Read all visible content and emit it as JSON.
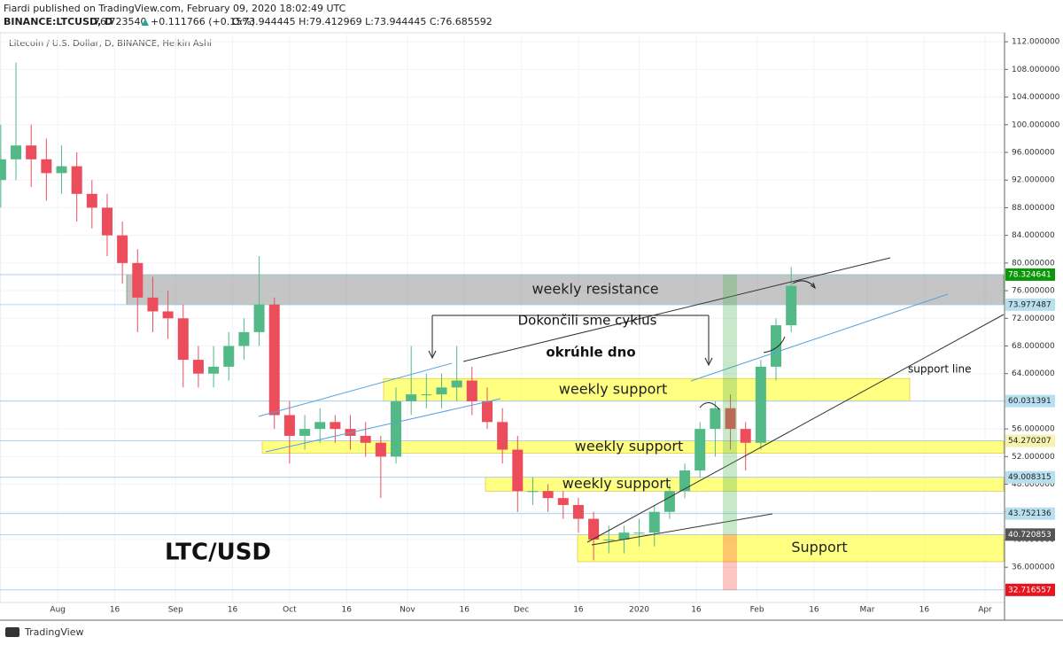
{
  "header": {
    "publisher": "Fiardi published on TradingView.com, February 09, 2020 18:02:49 UTC",
    "symbol": "BINANCE:LTCUSD, D",
    "price": "76.723540",
    "change": "+0.111766 (+0.15%)",
    "ohlc": "O:73.944445 H:79.412969 L:73.944445 C:76.685592"
  },
  "footer": "TradingView",
  "chart_data": {
    "type": "candlestick",
    "title": "Litecoin / U.S. Dollar, D, BINANCE, Heikin Ashi",
    "x": [
      -15,
      -11,
      -7,
      -3,
      1,
      5,
      9,
      13,
      17,
      21,
      25,
      29,
      33,
      37,
      41,
      45,
      49,
      53,
      57,
      61,
      65,
      69,
      73,
      77,
      81,
      85,
      89,
      93,
      97,
      101,
      105,
      109,
      113,
      117,
      121,
      125,
      129,
      133,
      137,
      141,
      145,
      149,
      153,
      157,
      161,
      165,
      169,
      173,
      177,
      181,
      185,
      189,
      193
    ],
    "open": [
      92,
      95,
      97,
      95,
      93,
      94,
      90,
      88,
      84,
      80,
      75,
      73,
      72,
      66,
      64,
      65,
      68,
      70,
      74,
      58,
      55,
      56,
      57,
      56,
      55,
      54,
      52,
      60,
      61,
      61,
      62,
      63,
      60,
      57,
      53,
      47,
      47,
      46,
      45,
      43,
      40,
      40,
      41,
      41,
      44,
      47,
      50,
      56,
      59,
      56,
      54,
      65,
      71
    ],
    "high": [
      100,
      109,
      100,
      98,
      97,
      96,
      92,
      90,
      86,
      82,
      78,
      76,
      74,
      68,
      68,
      70,
      72,
      81,
      75,
      60,
      58,
      59,
      58,
      58,
      57,
      55,
      62,
      68,
      64,
      64,
      68,
      65,
      62,
      59,
      55,
      49,
      48,
      47,
      46,
      44,
      42,
      42,
      43,
      45,
      48,
      51,
      57,
      60,
      61,
      57,
      66,
      72,
      79.4
    ],
    "low": [
      88,
      92,
      91,
      89,
      90,
      86,
      85,
      81,
      77,
      70,
      70,
      69,
      62,
      62,
      62,
      63,
      66,
      68,
      56,
      51,
      53,
      54,
      54,
      53,
      52,
      46,
      51,
      58,
      59,
      59,
      60,
      58,
      56,
      51,
      44,
      45,
      44,
      43,
      41,
      37,
      38,
      38,
      39,
      39,
      43,
      46,
      49,
      52,
      53,
      50,
      53,
      63,
      70
    ],
    "close": [
      95,
      97,
      95,
      93,
      94,
      90,
      88,
      84,
      80,
      75,
      73,
      72,
      66,
      64,
      65,
      68,
      70,
      74,
      58,
      55,
      56,
      57,
      56,
      55,
      54,
      52,
      60,
      61,
      61,
      62,
      63,
      60,
      57,
      53,
      47,
      47,
      46,
      45,
      43,
      40,
      40,
      41,
      41,
      44,
      47,
      50,
      56,
      59,
      56,
      54,
      65,
      71,
      76.7
    ],
    "up_color": "#53b987",
    "down_color": "#eb4d5c",
    "xlim": [
      -15.2,
      248.9
    ],
    "xticks": [
      {
        "value": 0,
        "label": "Aug"
      },
      {
        "value": 15,
        "label": "16"
      },
      {
        "value": 31,
        "label": "Sep"
      },
      {
        "value": 46,
        "label": "16"
      },
      {
        "value": 61,
        "label": "Oct"
      },
      {
        "value": 76,
        "label": "16"
      },
      {
        "value": 92,
        "label": "Nov"
      },
      {
        "value": 107,
        "label": "16"
      },
      {
        "value": 122,
        "label": "Dec"
      },
      {
        "value": 137,
        "label": "16"
      },
      {
        "value": 153,
        "label": "2020"
      },
      {
        "value": 168,
        "label": "16"
      },
      {
        "value": 184,
        "label": "Feb"
      },
      {
        "value": 199,
        "label": "16"
      },
      {
        "value": 213,
        "label": "Mar"
      },
      {
        "value": 228,
        "label": "16"
      },
      {
        "value": 244,
        "label": "Apr"
      }
    ],
    "ylim": [
      30.9,
      113.3
    ],
    "yticks": [
      {
        "value": 36,
        "label": "36.000000"
      },
      {
        "value": 40,
        "label": "40.000000"
      },
      {
        "value": 44,
        "label": "44.000000"
      },
      {
        "value": 48,
        "label": "48.000000"
      },
      {
        "value": 52,
        "label": "52.000000"
      },
      {
        "value": 56,
        "label": "56.000000"
      },
      {
        "value": 60,
        "label": "60.000000"
      },
      {
        "value": 64,
        "label": "64.000000"
      },
      {
        "value": 68,
        "label": "68.000000"
      },
      {
        "value": 72,
        "label": "72.000000"
      },
      {
        "value": 76,
        "label": "76.000000"
      },
      {
        "value": 80,
        "label": "80.000000"
      },
      {
        "value": 84,
        "label": "84.000000"
      },
      {
        "value": 88,
        "label": "88.000000"
      },
      {
        "value": 92,
        "label": "92.000000"
      },
      {
        "value": 96,
        "label": "96.000000"
      },
      {
        "value": 100,
        "label": "100.000000"
      },
      {
        "value": 104,
        "label": "104.000000"
      },
      {
        "value": 108,
        "label": "108.000000"
      },
      {
        "value": 112,
        "label": "112.000000"
      }
    ],
    "grid": true,
    "price_tags": [
      {
        "value": 78.324641,
        "label": "78.324641",
        "color": "#089808",
        "text_color": "#ffffff"
      },
      {
        "value": 73.977487,
        "label": "73.977487",
        "color": "#b7dff0",
        "text_color": "#222222"
      },
      {
        "value": 60.031391,
        "label": "60.031391",
        "color": "#b7dff0",
        "text_color": "#222222"
      },
      {
        "value": 54.270207,
        "label": "54.270207",
        "color": "#f6f2b0",
        "text_color": "#222222"
      },
      {
        "value": 49.008315,
        "label": "49.008315",
        "color": "#b7dff0",
        "text_color": "#222222"
      },
      {
        "value": 43.752136,
        "label": "43.752136",
        "color": "#b7dff0",
        "text_color": "#222222"
      },
      {
        "value": 40.720853,
        "label": "40.720853",
        "color": "#555555",
        "text_color": "#ffffff"
      },
      {
        "value": 32.716557,
        "label": "32.716557",
        "color": "#e8141e",
        "text_color": "#ffffff"
      }
    ],
    "zones": [
      {
        "label": "weekly resistance",
        "range": [
          73.977487,
          78.324641
        ],
        "color": "#8c8c8c"
      },
      {
        "label": "weekly support",
        "range": [
          60.031391,
          63.3
        ],
        "color": "#ffff4d"
      },
      {
        "label": "weekly support",
        "range": [
          52.5,
          54.270207
        ],
        "color": "#ffff4d"
      },
      {
        "label": "weekly support",
        "range": [
          47,
          49.008315
        ],
        "color": "#ffff4d"
      },
      {
        "label": "Support",
        "range": [
          36.8,
          40.720853
        ],
        "color": "#ffff4d"
      }
    ],
    "annotations": [
      "Dokončili sme cyklus",
      "okrúhle dno",
      "support line",
      "LTC/USD"
    ]
  }
}
